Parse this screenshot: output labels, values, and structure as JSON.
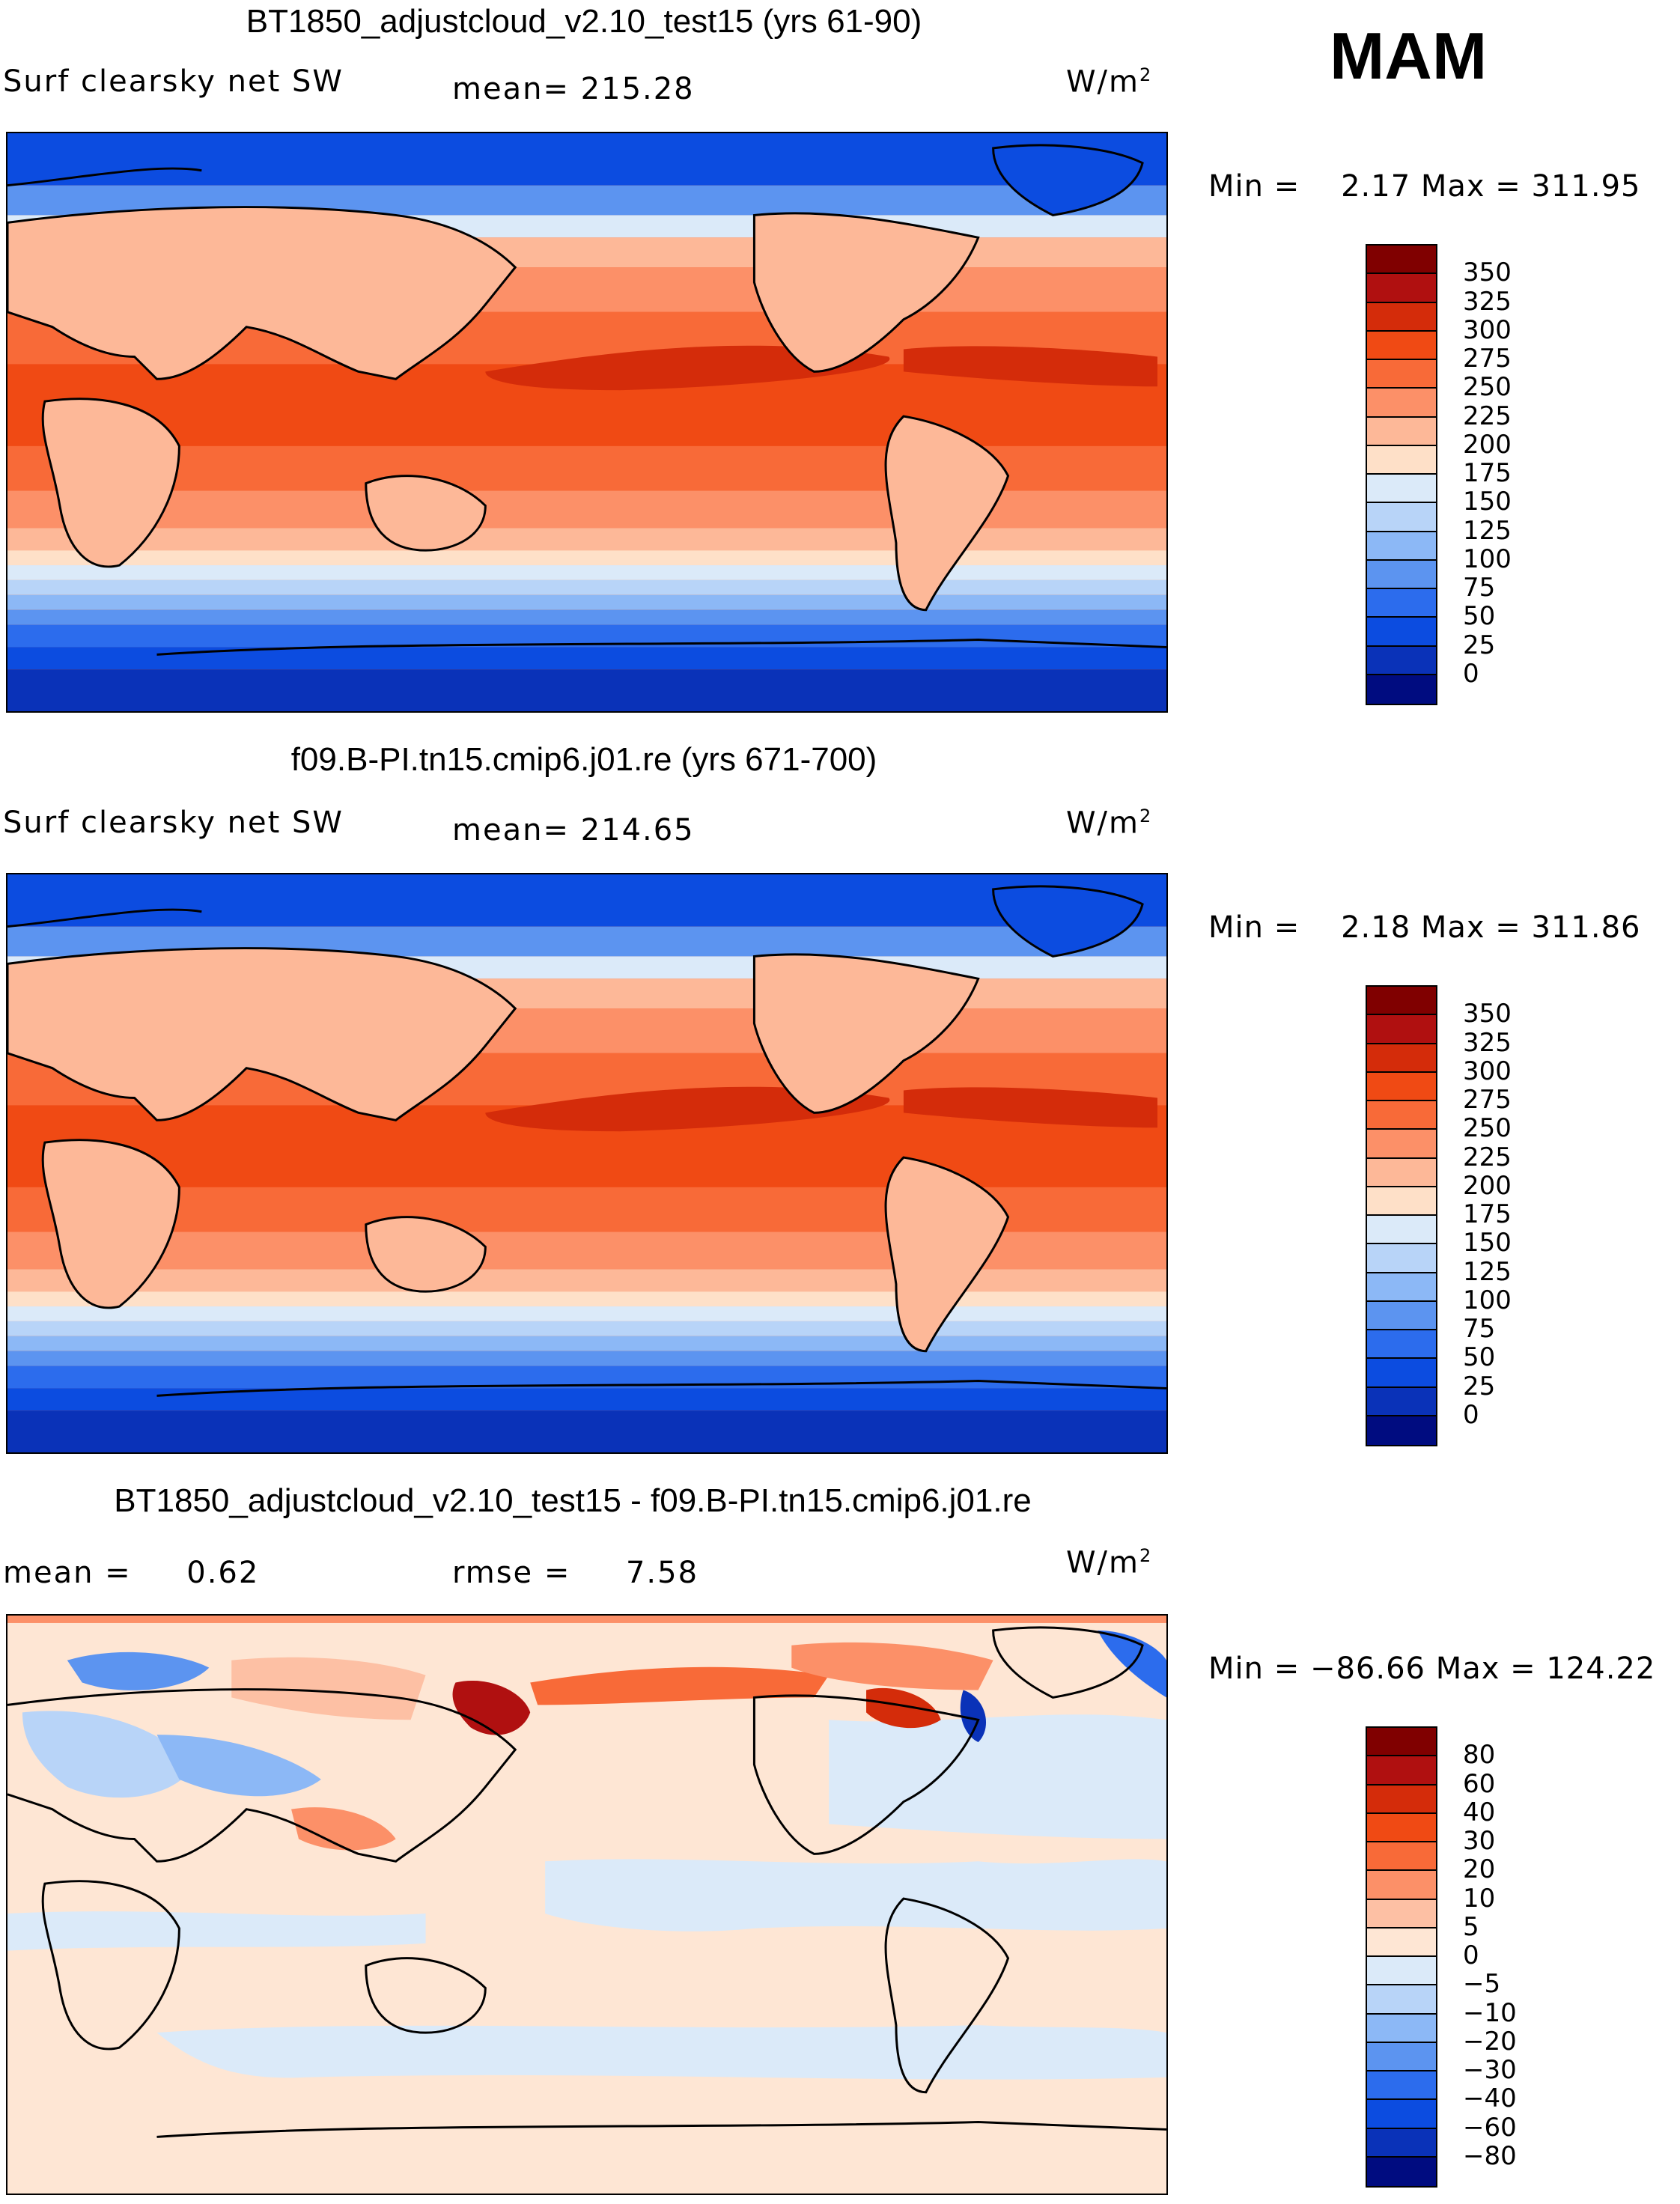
{
  "season": "MAM",
  "colors": {
    "full": [
      "#800000",
      "#b01010",
      "#d42c0a",
      "#f04a14",
      "#f86a38",
      "#fc9068",
      "#fdb898",
      "#fee0c8",
      "#dbeaf9",
      "#b8d4f8",
      "#8cb8f6",
      "#5c94f0",
      "#2c6ced",
      "#0c4ce0",
      "#0a32b8",
      "#000c80"
    ],
    "diff": [
      "#800000",
      "#b01010",
      "#d42c0a",
      "#f04a14",
      "#f86a38",
      "#fc9068",
      "#fdc0a4",
      "#fee6d4",
      "#dbeaf9",
      "#b8d4f8",
      "#8cb8f6",
      "#5c94f0",
      "#2c6ced",
      "#0c4ce0",
      "#0a32b8",
      "#000c80"
    ]
  },
  "panels": [
    {
      "title": "BT1850_adjustcloud_v2.10_test15 (yrs 61-90)",
      "left_label": "Surf clearsky net SW",
      "mid_label": "mean= 215.28",
      "units": "W/m",
      "units_sup": "2",
      "min_label": "Min =",
      "min_value": "2.17",
      "max_label": "Max =",
      "max_value": "311.95",
      "ticks": [
        "350",
        "325",
        "300",
        "275",
        "250",
        "225",
        "200",
        "175",
        "150",
        "125",
        "100",
        "75",
        "50",
        "25",
        "0"
      ]
    },
    {
      "title": "f09.B-PI.tn15.cmip6.j01.re (yrs 671-700)",
      "left_label": "Surf clearsky net SW",
      "mid_label": "mean= 214.65",
      "units": "W/m",
      "units_sup": "2",
      "min_label": "Min =",
      "min_value": "2.18",
      "max_label": "Max =",
      "max_value": "311.86",
      "ticks": [
        "350",
        "325",
        "300",
        "275",
        "250",
        "225",
        "200",
        "175",
        "150",
        "125",
        "100",
        "75",
        "50",
        "25",
        "0"
      ]
    },
    {
      "title": "BT1850_adjustcloud_v2.10_test15 - f09.B-PI.tn15.cmip6.j01.re",
      "mean_label": "mean =",
      "mean_value": "0.62",
      "rmse_label": "rmse =",
      "rmse_value": "7.58",
      "units": "W/m",
      "units_sup": "2",
      "min_label": "Min =",
      "min_value": "−86.66",
      "max_label": "Max =",
      "max_value": "124.22",
      "ticks": [
        "80",
        "60",
        "40",
        "30",
        "20",
        "10",
        "5",
        "0",
        "−5",
        "−10",
        "−20",
        "−30",
        "−40",
        "−60",
        "−80"
      ]
    }
  ]
}
